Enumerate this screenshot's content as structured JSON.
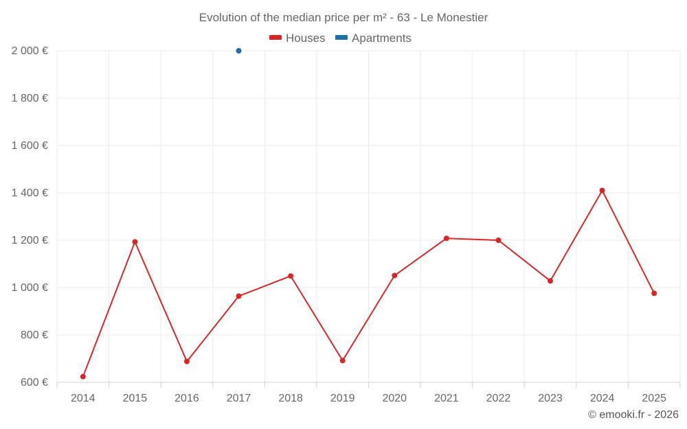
{
  "chart_data": {
    "type": "line",
    "title": "Evolution of the median price per m² - 63 - Le Monestier",
    "xlabel": "",
    "ylabel": "",
    "categories": [
      "2014",
      "2015",
      "2016",
      "2017",
      "2018",
      "2019",
      "2020",
      "2021",
      "2022",
      "2023",
      "2024",
      "2025"
    ],
    "ylim": [
      600,
      2000
    ],
    "yticks": [
      600,
      800,
      1000,
      1200,
      1400,
      1600,
      1800,
      2000
    ],
    "ytick_labels": [
      "600 €",
      "800 €",
      "1 000 €",
      "1 200 €",
      "1 400 €",
      "1 600 €",
      "1 800 €",
      "2 000 €"
    ],
    "grid": true,
    "legend_position": "top-center",
    "series": [
      {
        "name": "Houses",
        "color": "#d62728",
        "values": [
          624,
          1193,
          688,
          964,
          1049,
          692,
          1051,
          1208,
          1200,
          1028,
          1410,
          976
        ]
      },
      {
        "name": "Apartments",
        "color": "#1f6fa8",
        "values": [
          null,
          null,
          null,
          2000,
          null,
          null,
          null,
          null,
          null,
          null,
          null,
          null
        ]
      }
    ],
    "credit": "© emooki.fr - 2026"
  }
}
